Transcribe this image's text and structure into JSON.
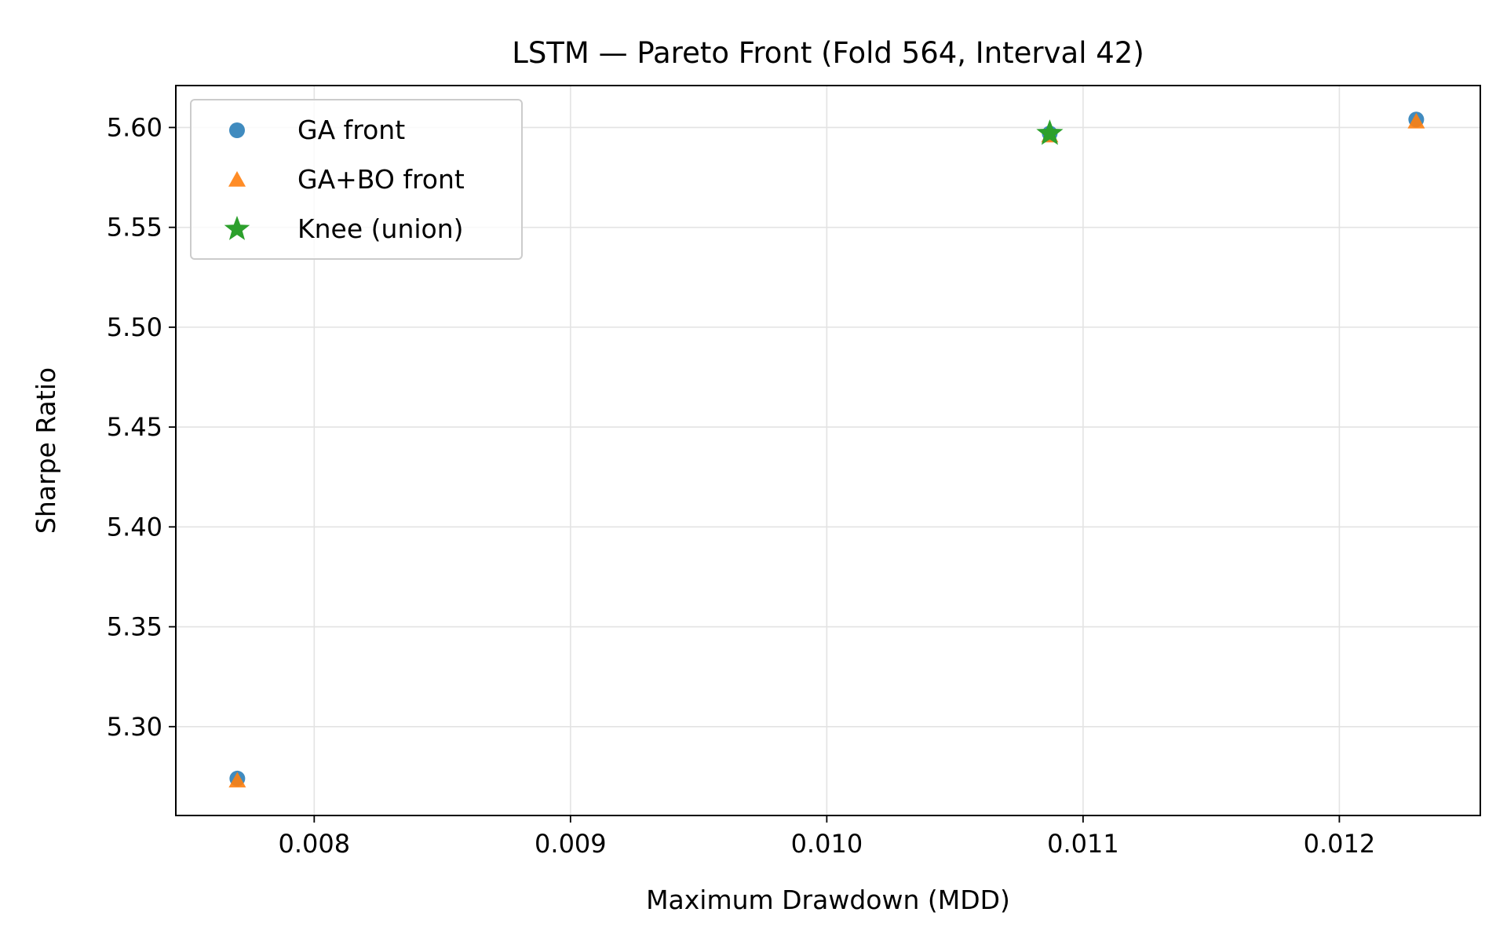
{
  "chart_data": {
    "type": "scatter",
    "title": "LSTM — Pareto Front (Fold 564, Interval 42)",
    "xlabel": "Maximum Drawdown (MDD)",
    "ylabel": "Sharpe Ratio",
    "xlim": [
      0.00746,
      0.01255
    ],
    "ylim": [
      5.2555,
      5.621
    ],
    "xticks": [
      0.008,
      0.009,
      0.01,
      0.011,
      0.012
    ],
    "xtick_labels": [
      "0.008",
      "0.009",
      "0.010",
      "0.011",
      "0.012"
    ],
    "yticks": [
      5.3,
      5.35,
      5.4,
      5.45,
      5.5,
      5.55,
      5.6
    ],
    "ytick_labels": [
      "5.30",
      "5.35",
      "5.40",
      "5.45",
      "5.50",
      "5.55",
      "5.60"
    ],
    "grid": true,
    "legend_position": "top-left",
    "series": [
      {
        "name": "GA front",
        "marker": "circle",
        "color": "#1f77b4",
        "points": [
          {
            "x": 0.0077,
            "y": 5.274
          },
          {
            "x": 0.01087,
            "y": 5.597
          },
          {
            "x": 0.0123,
            "y": 5.604
          }
        ]
      },
      {
        "name": "GA+BO front",
        "marker": "triangle",
        "color": "#ff7f0e",
        "points": [
          {
            "x": 0.0077,
            "y": 5.273
          },
          {
            "x": 0.01087,
            "y": 5.596
          },
          {
            "x": 0.0123,
            "y": 5.603
          }
        ]
      },
      {
        "name": "Knee (union)",
        "marker": "star",
        "color": "#2ca02c",
        "points": [
          {
            "x": 0.01087,
            "y": 5.597
          }
        ]
      }
    ]
  }
}
